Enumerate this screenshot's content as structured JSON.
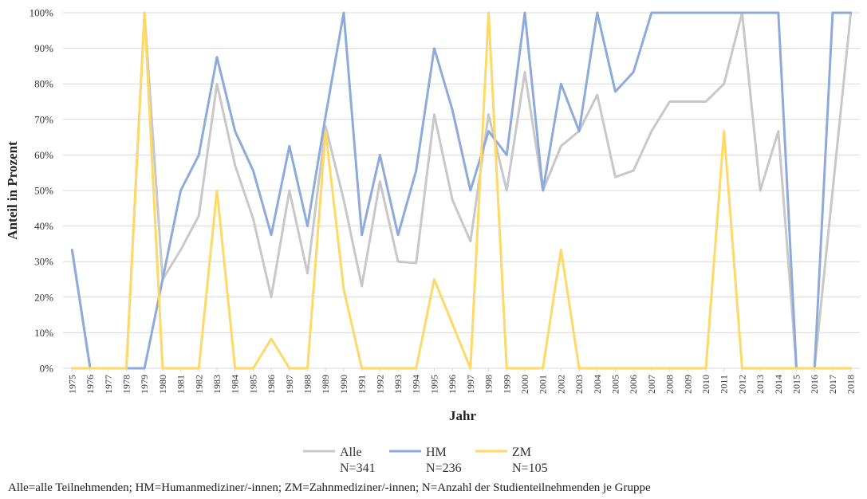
{
  "chart_data": {
    "type": "line",
    "xlabel": "Jahr",
    "ylabel": "Anteil in Prozent",
    "ylim": [
      0,
      100
    ],
    "y_ticks": [
      "0%",
      "10%",
      "20%",
      "30%",
      "40%",
      "50%",
      "60%",
      "70%",
      "80%",
      "90%",
      "100%"
    ],
    "x": [
      "1975",
      "1976",
      "1977",
      "1978",
      "1979",
      "1980",
      "1981",
      "1982",
      "1983",
      "1984",
      "1985",
      "1986",
      "1987",
      "1988",
      "1989",
      "1990",
      "1991",
      "1992",
      "1993",
      "1994",
      "1995",
      "1996",
      "1997",
      "1998",
      "1999",
      "2000",
      "2001",
      "2002",
      "2003",
      "2004",
      "2005",
      "2006",
      "2007",
      "2008",
      "2009",
      "2010",
      "2011",
      "2012",
      "2013",
      "2014",
      "2015",
      "2016",
      "2017",
      "2018"
    ],
    "grid": "horizontal",
    "legend_position": "bottom",
    "series": [
      {
        "name": "Alle",
        "n_label": "N=341",
        "color": "#c8c8c8",
        "values": [
          33.3,
          0,
          0,
          0,
          100,
          25,
          33.3,
          42.9,
          80,
          57.1,
          42.1,
          20,
          50,
          26.7,
          68,
          47.4,
          23.1,
          52.6,
          30,
          29.6,
          71.4,
          47.4,
          35.7,
          71.4,
          50,
          83.3,
          50,
          62.5,
          66.7,
          76.9,
          53.8,
          55.6,
          66.7,
          75,
          75,
          75,
          80,
          100,
          50,
          66.7,
          0,
          0,
          50,
          100
        ]
      },
      {
        "name": "HM",
        "n_label": "N=236",
        "color": "#8eaadb",
        "values": [
          33.3,
          0,
          0,
          0,
          0,
          25,
          50,
          60,
          87.5,
          66.7,
          55.6,
          37.5,
          62.5,
          40,
          71,
          100,
          37.5,
          60,
          37.5,
          55.6,
          90,
          72.7,
          50,
          66.7,
          60,
          100,
          50,
          80,
          66.7,
          100,
          77.8,
          83.3,
          100,
          100,
          100,
          100,
          100,
          100,
          100,
          100,
          0,
          0,
          100,
          100
        ]
      },
      {
        "name": "ZM",
        "n_label": "N=105",
        "color": "#ffd966",
        "values": [
          0,
          0,
          0,
          0,
          100,
          0,
          0,
          0,
          50,
          0,
          0,
          8.3,
          0,
          0,
          66.7,
          22.2,
          0,
          0,
          0,
          0,
          25,
          12.5,
          0,
          100,
          0,
          0,
          0,
          33.3,
          0,
          0,
          0,
          0,
          0,
          0,
          0,
          0,
          66.7,
          0,
          0,
          0,
          0,
          0,
          0,
          0
        ]
      }
    ]
  },
  "footnote": "Alle=alle Teilnehmenden; HM=Humanmediziner/-innen; ZM=Zahnmediziner/-innen; N=Anzahl der Studienteilnehmenden je Gruppe"
}
